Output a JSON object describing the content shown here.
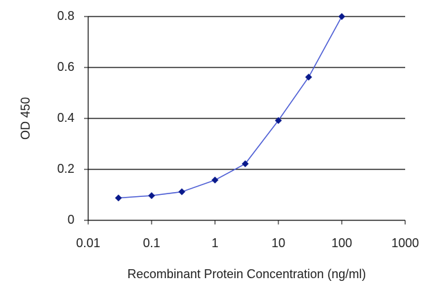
{
  "chart_data": {
    "type": "line",
    "x_label": "Recombinant Protein Concentration (ng/ml)",
    "y_label": "OD 450",
    "x": [
      0.03,
      0.1,
      0.3,
      1,
      3,
      10,
      30,
      100
    ],
    "values": [
      0.088,
      0.097,
      0.112,
      0.158,
      0.222,
      0.392,
      0.562,
      0.8
    ],
    "color": "#4a5bd4",
    "marker_color": "#0a1a8c",
    "xscale": "log",
    "xlim": [
      0.01,
      1000
    ],
    "xticks": [
      0.01,
      0.1,
      1,
      10,
      100,
      1000
    ],
    "ylim": [
      0,
      0.8
    ],
    "yticks": [
      0,
      0.2,
      0.4,
      0.6,
      0.8
    ],
    "grid": true
  }
}
